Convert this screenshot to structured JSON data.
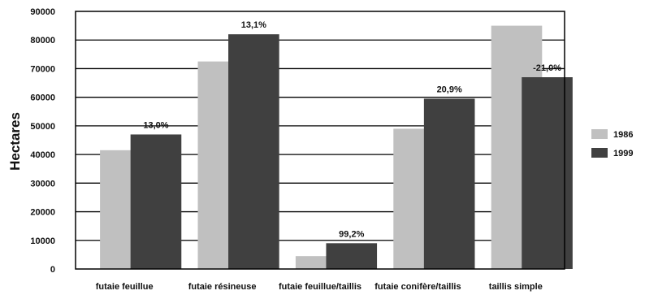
{
  "chart_data": {
    "type": "bar",
    "title": "",
    "xlabel": "",
    "ylabel": "Hectares",
    "ylim": [
      0,
      90000
    ],
    "yticks": [
      0,
      10000,
      20000,
      30000,
      40000,
      50000,
      60000,
      70000,
      80000,
      90000
    ],
    "grid": true,
    "legend_position": "right",
    "categories": [
      "futaie feuillue",
      "futaie résineuse",
      "futaie feuillue/taillis",
      "futaie conifère/taillis",
      "taillis simple"
    ],
    "series": [
      {
        "name": "1986",
        "color": "#c0c0c0",
        "values": [
          41500,
          72500,
          4500,
          49000,
          85000
        ]
      },
      {
        "name": "1999",
        "color": "#404040",
        "values": [
          47000,
          82000,
          9000,
          59500,
          67000
        ]
      }
    ],
    "data_labels": [
      "13,0%",
      "13,1%",
      "99,2%",
      "20,9%",
      "-21,0%"
    ]
  }
}
